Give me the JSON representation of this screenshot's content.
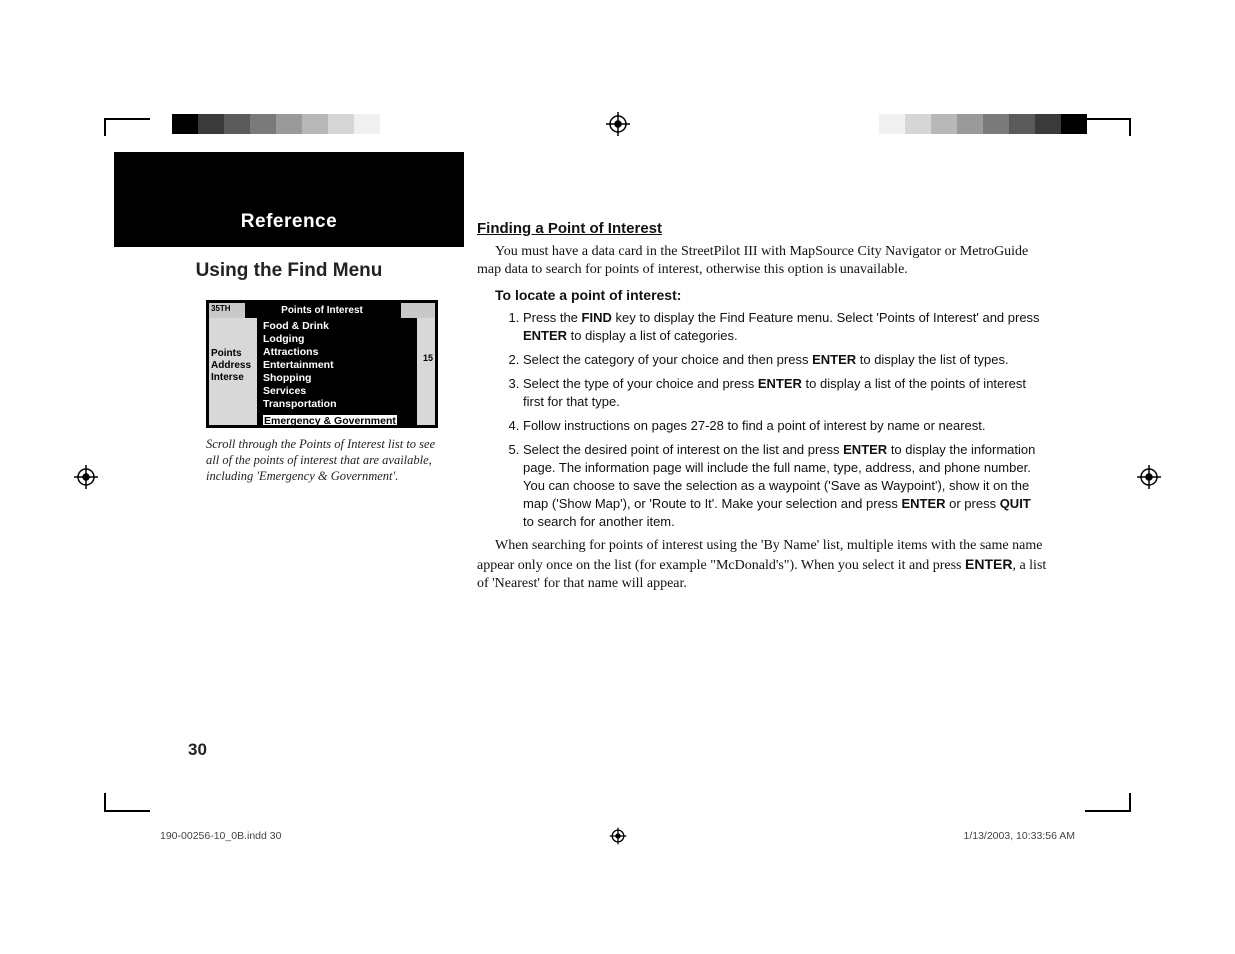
{
  "registration_marks": {
    "circle_r": 8,
    "cross_len": 12,
    "color": "#000000"
  },
  "color_bar": {
    "swatch_width": 26,
    "swatch_height": 20,
    "colors_left": [
      "#000000",
      "#3a3a3a",
      "#5a5a5a",
      "#7a7a7a",
      "#9a9a9a",
      "#b8b8b8",
      "#d6d6d6",
      "#f0f0f0",
      "#ffffff"
    ],
    "colors_right": [
      "#000000",
      "#3a3a3a",
      "#5a5a5a",
      "#7a7a7a",
      "#9a9a9a",
      "#b8b8b8",
      "#d6d6d6",
      "#f0f0f0",
      "#ffffff"
    ]
  },
  "header": {
    "reference": "Reference",
    "subtitle": "Using the Find Menu"
  },
  "poi_screenshot": {
    "street_label": "35TH",
    "title": "Points of Interest",
    "side_labels": [
      "Points",
      "Address",
      "Interse"
    ],
    "right_marks": "15",
    "items": [
      {
        "label": "Food & Drink",
        "selected": false
      },
      {
        "label": "Lodging",
        "selected": false
      },
      {
        "label": "Attractions",
        "selected": false
      },
      {
        "label": "Entertainment",
        "selected": false
      },
      {
        "label": "Shopping",
        "selected": false
      },
      {
        "label": "Services",
        "selected": false
      },
      {
        "label": "Transportation",
        "selected": false
      },
      {
        "label": "Emergency & Government",
        "selected": true
      }
    ],
    "caption": "Scroll through the Points of Interest list to see all of the points of interest that are available, including 'Emergency & Government'."
  },
  "body": {
    "section_title": "Finding a Point of Interest",
    "intro": "You must have a data card in the StreetPilot III with MapSource City Navigator or MetroGuide map data to search for points of interest, otherwise this option is unavailable.",
    "howto_title": "To locate a point of interest:",
    "steps": [
      {
        "pre": "Press the ",
        "b1": "FIND",
        "mid1": " key to display the Find Feature menu. Select 'Points of Interest' and press ",
        "b2": "ENTER",
        "post": "  to display a list of categories."
      },
      {
        "pre": "Select the category of your choice and then press ",
        "b1": "ENTER",
        "post": " to display the list of types."
      },
      {
        "pre": "Select the type of your choice and press ",
        "b1": "ENTER",
        "post": " to display a list of the points of interest first for that type."
      },
      {
        "pre": "Follow instructions on pages 27-28 to find a point of interest by name or nearest."
      },
      {
        "pre": "Select the desired point of interest on the list and press ",
        "b1": "ENTER",
        "mid1": " to display the information page.  The information page will include the full name, type, address, and phone number.  You can choose to save the selection as a waypoint ('Save as Waypoint'), show it on the map ('Show Map'), or 'Route to It'.  Make your selection and press ",
        "b2": "ENTER",
        "mid2": " or press ",
        "b3": "QUIT",
        "post": " to search for another item."
      }
    ],
    "closing_pre": "When searching for points of interest using the 'By Name' list, multiple items with the same name appear only once on the list (for example \"McDonald's\").  When you select it and press ",
    "closing_bold": "ENTER",
    "closing_post": ", a list of 'Nearest' for that name will appear."
  },
  "page_number": "30",
  "footer": {
    "left": "190-00256-10_0B.indd   30",
    "right": "1/13/2003, 10:33:56 AM"
  }
}
